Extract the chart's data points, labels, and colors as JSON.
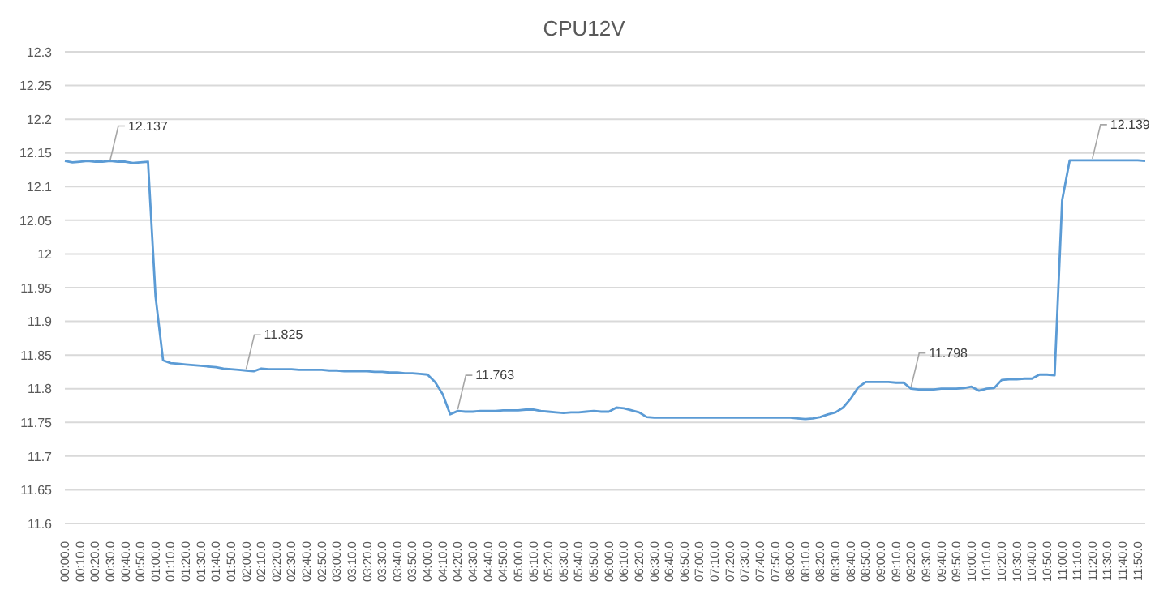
{
  "chart_data": {
    "type": "line",
    "title": "CPU12V",
    "categories": [
      "00:00.0",
      null,
      "00:10.0",
      null,
      "00:20.0",
      null,
      "00:30.0",
      null,
      "00:40.0",
      null,
      "00:50.0",
      null,
      "01:00.0",
      null,
      "01:10.0",
      null,
      "01:20.0",
      null,
      "01:30.0",
      null,
      "01:40.0",
      null,
      "01:50.0",
      null,
      "02:00.0",
      null,
      "02:10.0",
      null,
      "02:20.0",
      null,
      "02:30.0",
      null,
      "02:40.0",
      null,
      "02:50.0",
      null,
      "03:00.0",
      null,
      "03:10.0",
      null,
      "03:20.0",
      null,
      "03:30.0",
      null,
      "03:40.0",
      null,
      "03:50.0",
      null,
      "04:00.0",
      null,
      "04:10.0",
      null,
      "04:20.0",
      null,
      "04:30.0",
      null,
      "04:40.0",
      null,
      "04:50.0",
      null,
      "05:00.0",
      null,
      "05:10.0",
      null,
      "05:20.0",
      null,
      "05:30.0",
      null,
      "05:40.0",
      null,
      "05:50.0",
      null,
      "06:00.0",
      null,
      "06:10.0",
      null,
      "06:20.0",
      null,
      "06:30.0",
      null,
      "06:40.0",
      null,
      "06:50.0",
      null,
      "07:00.0",
      null,
      "07:10.0",
      null,
      "07:20.0",
      null,
      "07:30.0",
      null,
      "07:40.0",
      null,
      "07:50.0",
      null,
      "08:00.0",
      null,
      "08:10.0",
      null,
      "08:20.0",
      null,
      "08:30.0",
      null,
      "08:40.0",
      null,
      "08:50.0",
      null,
      "09:00.0",
      null,
      "09:10.0",
      null,
      "09:20.0",
      null,
      "09:30.0",
      null,
      "09:40.0",
      null,
      "09:50.0",
      null,
      "10:00.0",
      null,
      "10:10.0",
      null,
      "10:20.0",
      null,
      "10:30.0",
      null,
      "10:40.0",
      null,
      "10:50.0",
      null,
      "11:00.0",
      null,
      "11:10.0",
      null,
      "11:20.0",
      null,
      "11:30.0",
      null,
      "11:40.0",
      null,
      "11:50.0",
      null
    ],
    "series": [
      {
        "color": "#5b9bd5",
        "values": [
          12.138,
          12.136,
          12.137,
          12.138,
          12.137,
          12.137,
          12.138,
          12.137,
          12.137,
          12.135,
          12.136,
          12.137,
          11.937,
          11.842,
          11.838,
          11.837,
          11.836,
          11.835,
          11.834,
          11.833,
          11.832,
          11.83,
          11.829,
          11.828,
          11.827,
          11.826,
          11.83,
          11.829,
          11.829,
          11.829,
          11.829,
          11.828,
          11.828,
          11.828,
          11.828,
          11.827,
          11.827,
          11.826,
          11.826,
          11.826,
          11.826,
          11.825,
          11.825,
          11.824,
          11.824,
          11.823,
          11.823,
          11.822,
          11.821,
          11.81,
          11.792,
          11.762,
          11.767,
          11.766,
          11.766,
          11.767,
          11.767,
          11.767,
          11.768,
          11.768,
          11.768,
          11.769,
          11.769,
          11.767,
          11.766,
          11.765,
          11.764,
          11.765,
          11.765,
          11.766,
          11.767,
          11.766,
          11.766,
          11.772,
          11.771,
          11.768,
          11.765,
          11.758,
          11.757,
          11.757,
          11.757,
          11.757,
          11.757,
          11.757,
          11.757,
          11.757,
          11.757,
          11.757,
          11.757,
          11.757,
          11.757,
          11.757,
          11.757,
          11.757,
          11.757,
          11.757,
          11.757,
          11.756,
          11.755,
          11.756,
          11.758,
          11.762,
          11.765,
          11.772,
          11.785,
          11.802,
          11.81,
          11.81,
          11.81,
          11.81,
          11.809,
          11.809,
          11.8,
          11.799,
          11.799,
          11.799,
          11.8,
          11.8,
          11.8,
          11.801,
          11.803,
          11.797,
          11.8,
          11.801,
          11.813,
          11.814,
          11.814,
          11.815,
          11.815,
          11.821,
          11.821,
          11.82,
          12.08,
          12.139,
          12.139,
          12.139,
          12.139,
          12.139,
          12.139,
          12.139,
          12.139,
          12.139,
          12.139,
          12.138
        ]
      }
    ],
    "ylim": [
      11.6,
      12.3
    ],
    "yticks": [
      11.6,
      11.65,
      11.7,
      11.75,
      11.8,
      11.85,
      11.9,
      11.95,
      12,
      12.05,
      12.1,
      12.15,
      12.2,
      12.25,
      12.3
    ],
    "grid": "y",
    "marker": "none",
    "line_style": "solid",
    "annotations": [
      {
        "text": "12.137",
        "x": "00:30.0",
        "y": 12.137
      },
      {
        "text": "11.825",
        "x": "02:00.0",
        "y": 11.827
      },
      {
        "text": "11.763",
        "x": "04:20.0",
        "y": 11.767
      },
      {
        "text": "11.798",
        "x": "09:20.0",
        "y": 11.8
      },
      {
        "text": "12.139",
        "x": "11:20.0",
        "y": 12.139
      }
    ]
  }
}
